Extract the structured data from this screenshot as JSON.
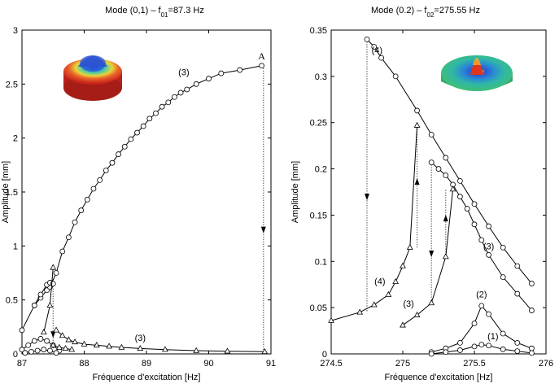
{
  "chart_data": [
    {
      "type": "line",
      "title": "Mode (0,1) – f",
      "title_sub": "01",
      "title_tail": "=87.3 Hz",
      "xlabel": "Fréquence d'excitation [Hz]",
      "ylabel": "Amplitude [mm]",
      "xlim": [
        87,
        91
      ],
      "ylim": [
        0,
        3
      ],
      "xticks": [
        "87",
        "88",
        "89",
        "90",
        "91"
      ],
      "yticks": [
        "0",
        "0.5",
        "1",
        "1.5",
        "2",
        "2.5",
        "3"
      ],
      "grid": false,
      "legend": "none",
      "inset": "mode (0,1) surface, colored red-to-blue",
      "series": [
        {
          "marker": "circle",
          "x": [
            87.0,
            87.2,
            87.3,
            87.4,
            87.45,
            87.55,
            87.65,
            87.75,
            87.85,
            87.95,
            88.05,
            88.15,
            88.25,
            88.35,
            88.45,
            88.55,
            88.65,
            88.75,
            88.85,
            88.95,
            89.05,
            89.15,
            89.25,
            89.35,
            89.45,
            89.55,
            89.65,
            89.8,
            90.0,
            90.2,
            90.5,
            90.85
          ],
          "y": [
            0.22,
            0.45,
            0.52,
            0.59,
            0.62,
            0.75,
            0.95,
            1.08,
            1.22,
            1.33,
            1.43,
            1.53,
            1.61,
            1.7,
            1.77,
            1.85,
            1.92,
            1.99,
            2.05,
            2.11,
            2.18,
            2.23,
            2.29,
            2.33,
            2.38,
            2.42,
            2.45,
            2.5,
            2.55,
            2.6,
            2.63,
            2.67
          ]
        },
        {
          "marker": "circle",
          "x": [
            87.2,
            87.3,
            87.4,
            87.45,
            87.5
          ],
          "y": [
            0.45,
            0.55,
            0.64,
            0.66,
            0.65
          ]
        },
        {
          "marker": "circle",
          "x": [
            87.0,
            87.1,
            87.2,
            87.3,
            87.4,
            87.5,
            87.6
          ],
          "y": [
            0.04,
            0.08,
            0.12,
            0.14,
            0.12,
            0.08,
            0.03
          ]
        },
        {
          "marker": "circle",
          "x": [
            87.05,
            87.15,
            87.25,
            87.35,
            87.45,
            87.55
          ],
          "y": [
            0.01,
            0.02,
            0.03,
            0.04,
            0.03,
            0.01
          ]
        },
        {
          "marker": "triangle",
          "x": [
            87.35,
            87.45,
            87.5
          ],
          "y": [
            0.2,
            0.45,
            0.8
          ]
        },
        {
          "marker": "triangle",
          "x": [
            87.55,
            87.65,
            87.75,
            87.85,
            88.0,
            88.2,
            88.4,
            88.6,
            88.9,
            89.3,
            89.8,
            90.3,
            90.9
          ],
          "y": [
            0.22,
            0.17,
            0.13,
            0.11,
            0.09,
            0.08,
            0.07,
            0.06,
            0.05,
            0.04,
            0.03,
            0.025,
            0.02
          ]
        },
        {
          "marker": "triangle",
          "x": [
            87.5,
            87.6,
            87.7,
            87.8
          ],
          "y": [
            0.08,
            0.06,
            0.05,
            0.04
          ]
        }
      ],
      "jumps": [
        {
          "x": 90.88,
          "y_from": 2.67,
          "y_to": 0.02
        },
        {
          "x": 87.5,
          "y_from": 0.65,
          "y_to": 0.1
        }
      ],
      "annotations": [
        {
          "text": "A",
          "x": 90.85,
          "y": 2.73
        },
        {
          "text": "(3)",
          "x": 89.6,
          "y": 2.58
        },
        {
          "text": "(3)",
          "x": 88.9,
          "y": 0.12
        }
      ]
    },
    {
      "type": "line",
      "title": "Mode (0.2) – f",
      "title_sub": "02",
      "title_tail": "=275.55 Hz",
      "xlabel": "Fréquence d'excitation [Hz]",
      "ylabel": "Amplitude [mm]",
      "xlim": [
        274.5,
        276
      ],
      "ylim": [
        0,
        0.35
      ],
      "xticks": [
        "274.5",
        "275",
        "275.5",
        "276"
      ],
      "yticks": [
        "0",
        "0.05",
        "0.1",
        "0.15",
        "0.2",
        "0.25",
        "0.3",
        "0.35"
      ],
      "grid": false,
      "legend": "none",
      "inset": "mode (0,2) surface, colored blue-green with red center",
      "series": [
        {
          "name": "(4)",
          "marker": "circle",
          "x": [
            274.75,
            274.8,
            274.85,
            274.95,
            275.1,
            275.2,
            275.3,
            275.4,
            275.5,
            275.6,
            275.7,
            275.8,
            275.9
          ],
          "y": [
            0.34,
            0.332,
            0.32,
            0.3,
            0.263,
            0.237,
            0.212,
            0.187,
            0.162,
            0.138,
            0.115,
            0.095,
            0.076
          ]
        },
        {
          "name": "(3)",
          "marker": "circle",
          "x": [
            275.2,
            275.25,
            275.3,
            275.35,
            275.4,
            275.45,
            275.5,
            275.55,
            275.6,
            275.7,
            275.8,
            275.9
          ],
          "y": [
            0.207,
            0.2,
            0.193,
            0.183,
            0.17,
            0.157,
            0.14,
            0.123,
            0.107,
            0.083,
            0.065,
            0.047
          ]
        },
        {
          "name": "(4)",
          "marker": "triangle",
          "x": [
            274.5,
            274.7,
            274.8,
            274.9,
            274.95,
            275.0,
            275.05,
            275.1
          ],
          "y": [
            0.036,
            0.045,
            0.053,
            0.064,
            0.078,
            0.095,
            0.115,
            0.247
          ]
        },
        {
          "name": "(3)",
          "marker": "triangle",
          "x": [
            275.0,
            275.1,
            275.2,
            275.3,
            275.35
          ],
          "y": [
            0.031,
            0.042,
            0.055,
            0.105,
            0.178
          ]
        },
        {
          "name": "(2)",
          "marker": "circle",
          "x": [
            275.2,
            275.3,
            275.4,
            275.5,
            275.55,
            275.6,
            275.7,
            275.8,
            275.9
          ],
          "y": [
            0.002,
            0.006,
            0.012,
            0.033,
            0.052,
            0.043,
            0.022,
            0.012,
            0.006
          ]
        },
        {
          "name": "(1)",
          "marker": "circle",
          "x": [
            275.2,
            275.3,
            275.4,
            275.5,
            275.55,
            275.6,
            275.7,
            275.8,
            275.9
          ],
          "y": [
            0.0,
            0.002,
            0.004,
            0.008,
            0.01,
            0.009,
            0.005,
            0.003,
            0.001
          ]
        }
      ],
      "jumps": [
        {
          "x": 274.75,
          "y_from": 0.34,
          "y_to": 0.045,
          "dir": "down"
        },
        {
          "x": 275.1,
          "y_from": 0.115,
          "y_to": 0.247,
          "dir": "up"
        },
        {
          "x": 275.2,
          "y_from": 0.207,
          "y_to": 0.055,
          "dir": "down"
        },
        {
          "x": 275.3,
          "y_from": 0.105,
          "y_to": 0.178,
          "dir": "up"
        }
      ],
      "annotations": [
        {
          "text": "(4)",
          "x": 274.82,
          "y": 0.325
        },
        {
          "text": "(3)",
          "x": 275.6,
          "y": 0.113
        },
        {
          "text": "(4)",
          "x": 274.84,
          "y": 0.075
        },
        {
          "text": "(3)",
          "x": 275.04,
          "y": 0.051
        },
        {
          "text": "(2)",
          "x": 275.55,
          "y": 0.061
        },
        {
          "text": "(1)",
          "x": 275.63,
          "y": 0.016
        }
      ]
    }
  ]
}
